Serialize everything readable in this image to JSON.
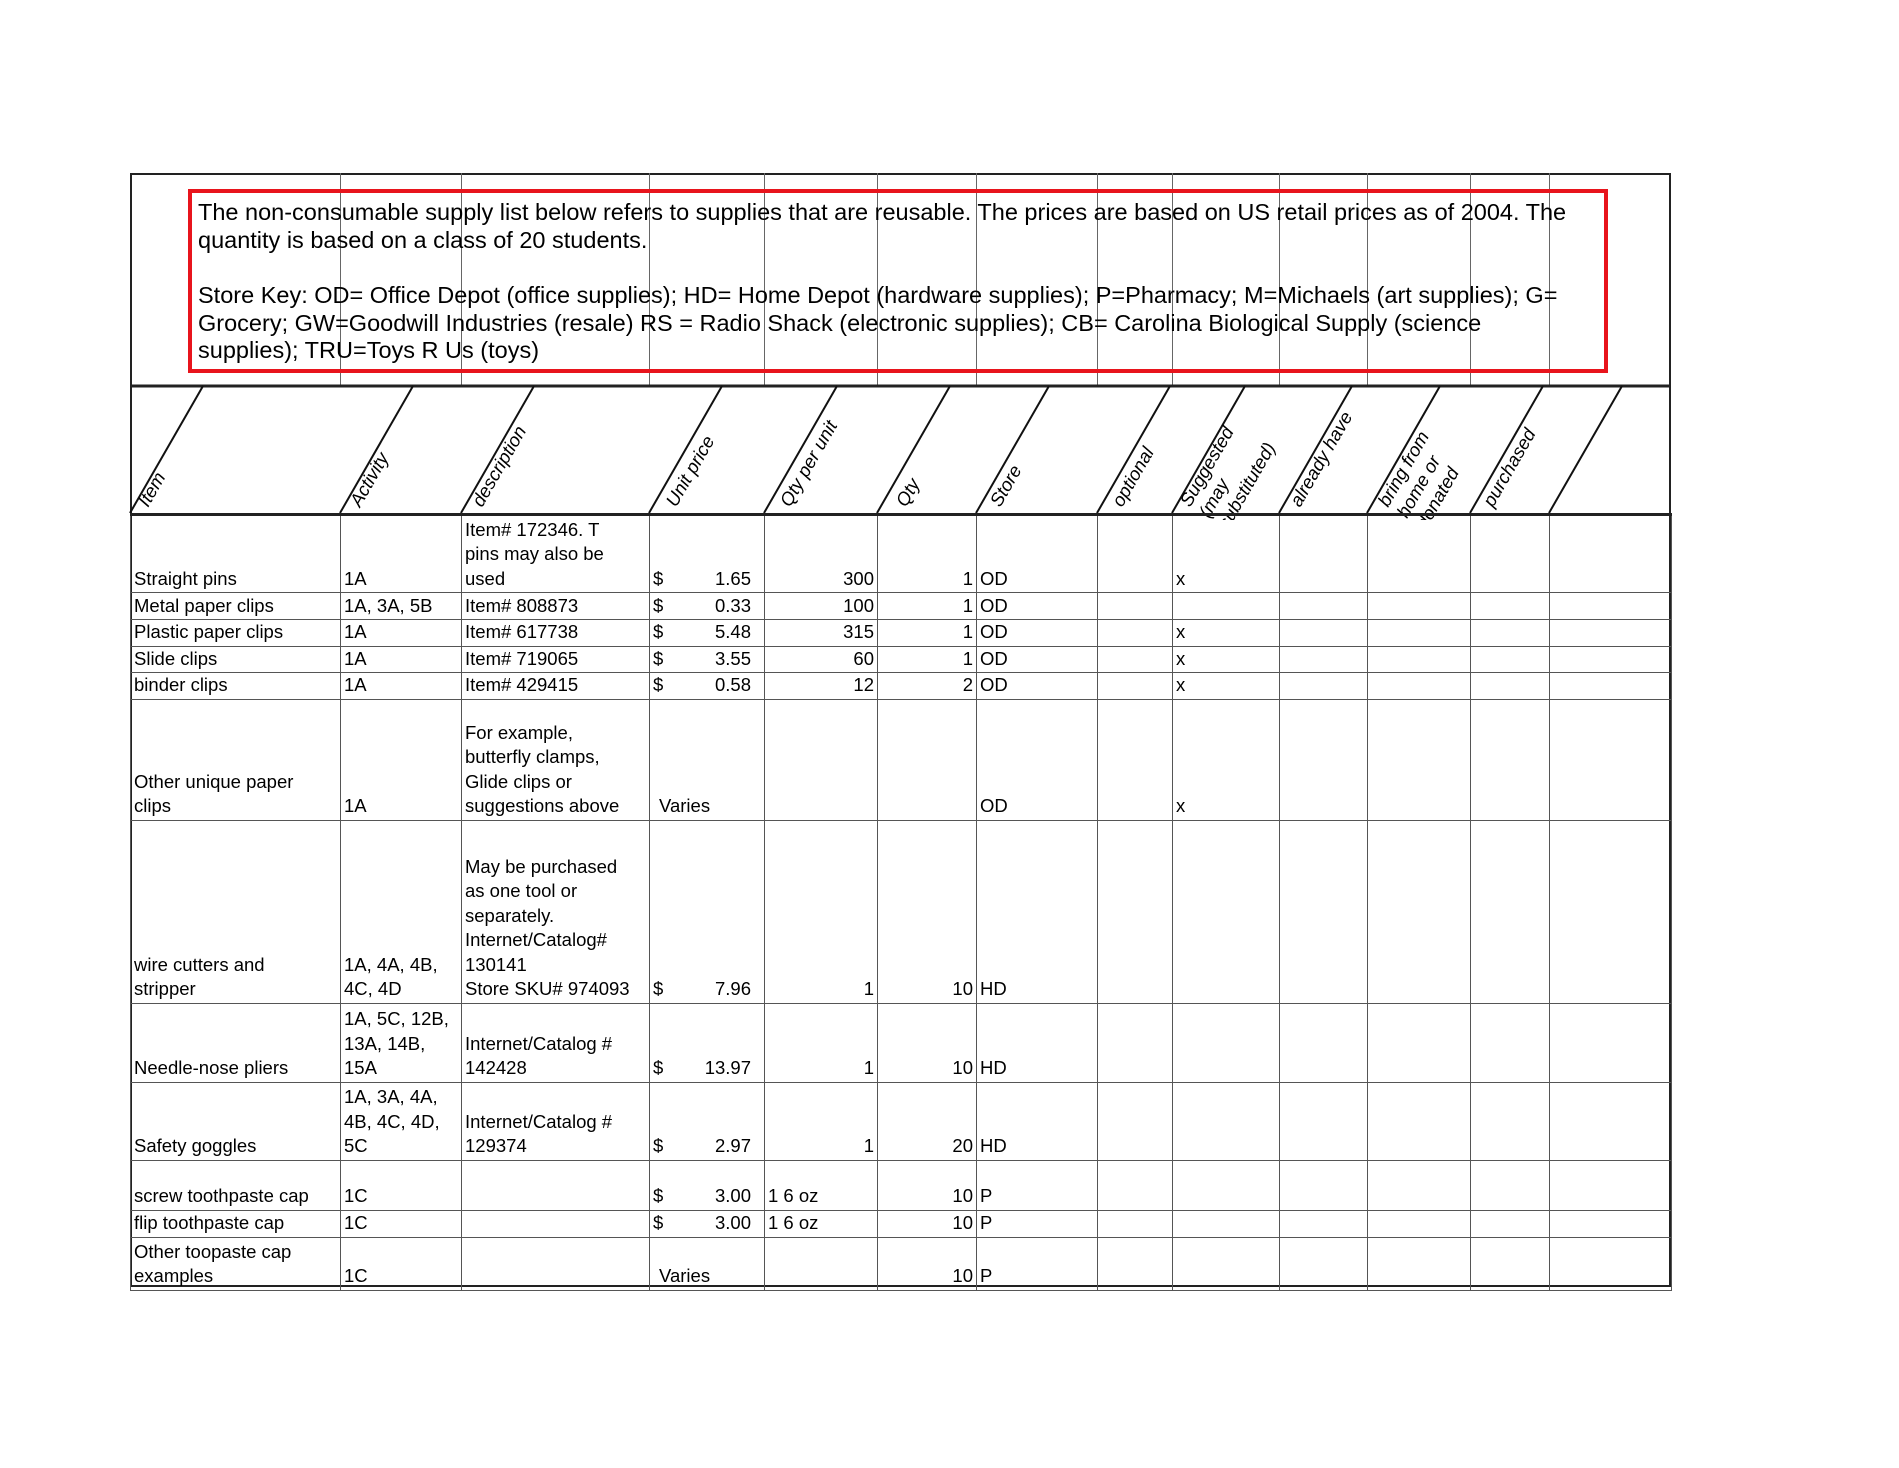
{
  "notice": {
    "lines": [
      "The non-consumable supply list below refers to supplies that are reusable. The prices are based on US retail prices as of 2004. The",
      "quantity is based on a class of 20 students.",
      "Store Key: OD= Office Depot (office supplies); HD= Home Depot (hardware supplies); P=Pharmacy; M=Michaels (art supplies); G=",
      "Grocery; GW=Goodwill Industries (resale) RS = Radio Shack (electronic supplies); CB= Carolina Biological Supply (science",
      "supplies); TRU=Toys R Us (toys)"
    ],
    "border_color": "#e8141c"
  },
  "columns": [
    [
      "Item"
    ],
    [
      "Activity"
    ],
    [
      "description"
    ],
    [
      "Unit price"
    ],
    [
      "Qty per unit"
    ],
    [
      "Qty"
    ],
    [
      "Store"
    ],
    [
      "optional"
    ],
    [
      "Suggested",
      "(may",
      "substituted)"
    ],
    [
      "already  have"
    ],
    [
      "bring from",
      "home or",
      "donated"
    ],
    [
      "purchased"
    ]
  ],
  "rows": [
    {
      "item": "Straight pins",
      "activity": "1A",
      "description": "Item# 172346. T\npins may also be\nused",
      "currency": "$",
      "price": "1.65",
      "qty_per_unit": "300",
      "qty": "1",
      "store": "OD",
      "suggested": "x"
    },
    {
      "item": "Metal paper clips",
      "activity": "1A, 3A, 5B",
      "description": "Item# 808873",
      "currency": "$",
      "price": "0.33",
      "qty_per_unit": "100",
      "qty": "1",
      "store": "OD",
      "suggested": ""
    },
    {
      "item": "Plastic paper clips",
      "activity": "1A",
      "description": "Item# 617738",
      "currency": "$",
      "price": "5.48",
      "qty_per_unit": "315",
      "qty": "1",
      "store": "OD",
      "suggested": "x"
    },
    {
      "item": "Slide clips",
      "activity": "1A",
      "description": "Item# 719065",
      "currency": "$",
      "price": "3.55",
      "qty_per_unit": "60",
      "qty": "1",
      "store": "OD",
      "suggested": "x"
    },
    {
      "item": "binder clips",
      "activity": "1A",
      "description": "Item# 429415",
      "currency": "$",
      "price": "0.58",
      "qty_per_unit": "12",
      "qty": "2",
      "store": "OD",
      "suggested": "x"
    },
    {
      "item": "Other unique paper\nclips",
      "activity": "1A",
      "description": "For example,\nbutterfly clamps,\nGlide clips or\nsuggestions above",
      "currency": "",
      "price": "Varies",
      "qty_per_unit": "",
      "qty": "",
      "store": "OD",
      "suggested": "x"
    },
    {
      "item": "wire cutters and\nstripper",
      "activity": "1A, 4A, 4B,\n4C, 4D",
      "description": "May be purchased\nas one tool or\nseparately.\nInternet/Catalog#\n130141\nStore SKU# 974093",
      "currency": "$",
      "price": "7.96",
      "qty_per_unit": "1",
      "qty": "10",
      "store": "HD",
      "suggested": ""
    },
    {
      "item": "Needle-nose pliers",
      "activity": "1A, 5C, 12B,\n13A, 14B,\n15A",
      "description": "Internet/Catalog #\n142428",
      "currency": "$",
      "price": "13.97",
      "qty_per_unit": "1",
      "qty": "10",
      "store": "HD",
      "suggested": ""
    },
    {
      "item": "Safety goggles",
      "activity": "1A, 3A, 4A,\n4B, 4C, 4D,\n5C",
      "description": "Internet/Catalog #\n129374",
      "currency": "$",
      "price": "2.97",
      "qty_per_unit": "1",
      "qty": "20",
      "store": "HD",
      "suggested": ""
    },
    {
      "item": "screw toothpaste cap",
      "activity": "1C",
      "description": "",
      "currency": "$",
      "price": "3.00",
      "qty_per_unit": "1 6 oz",
      "qty": "10",
      "store": "P",
      "suggested": ""
    },
    {
      "item": "flip toothpaste cap",
      "activity": "1C",
      "description": "",
      "currency": "$",
      "price": "3.00",
      "qty_per_unit": "1 6 oz",
      "qty": "10",
      "store": "P",
      "suggested": ""
    },
    {
      "item": "Other toopaste cap\nexamples",
      "activity": "1C",
      "description": "",
      "currency": "",
      "price": "Varies",
      "qty_per_unit": "",
      "qty": "10",
      "store": "P",
      "suggested": ""
    }
  ]
}
